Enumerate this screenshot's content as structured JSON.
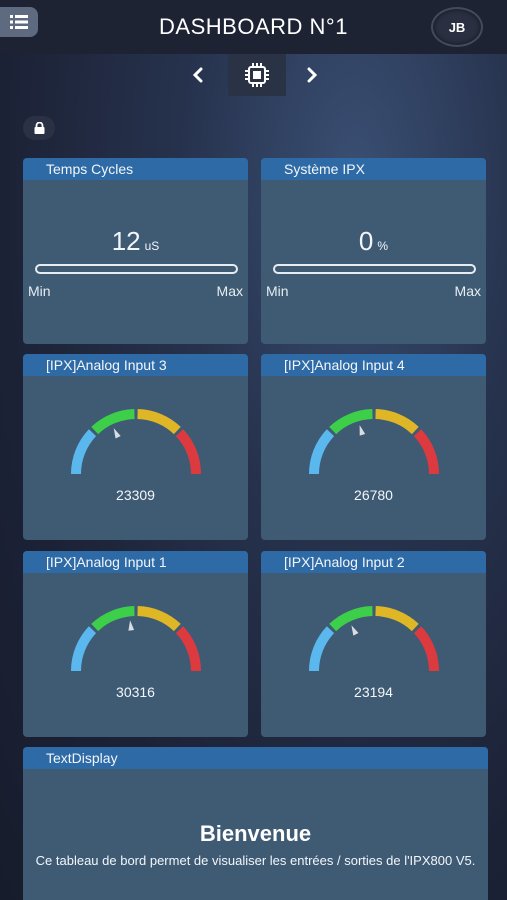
{
  "header": {
    "title": "DASHBOARD N°1",
    "avatar_initials": "JB",
    "menu_icon": "list-icon"
  },
  "nav": {
    "prev_icon": "chevron-left-icon",
    "center_icon": "chip-icon",
    "next_icon": "chevron-right-icon"
  },
  "lock_icon": "lock-icon",
  "widgets": {
    "temps_cycles": {
      "title": "Temps Cycles",
      "value": "12",
      "unit": "uS",
      "min_label": "Min",
      "max_label": "Max",
      "level": 0
    },
    "systeme_ipx": {
      "title": "Système IPX",
      "value": "0",
      "unit": "%",
      "min_label": "Min",
      "max_label": "Max",
      "level": 0
    },
    "analog3": {
      "title": "[IPX]Analog Input 3",
      "value": "23309",
      "fraction": 0.356
    },
    "analog4": {
      "title": "[IPX]Analog Input 4",
      "value": "26780",
      "fraction": 0.409
    },
    "analog1": {
      "title": "[IPX]Analog Input 1",
      "value": "30316",
      "fraction": 0.463
    },
    "analog2": {
      "title": "[IPX]Analog Input 2",
      "value": "23194",
      "fraction": 0.354
    },
    "text_display": {
      "title": "TextDisplay",
      "heading": "Bienvenue",
      "body": "Ce tableau de bord permet de visualiser les entrées / sorties de l'IPX800 V5."
    }
  },
  "colors": {
    "card": "#3f5b74",
    "card_header": "#2e6aa6",
    "gauge_blue": "#5ab8ee",
    "gauge_green": "#3ecf4a",
    "gauge_yellow": "#dfb726",
    "gauge_red": "#dd3a40"
  }
}
